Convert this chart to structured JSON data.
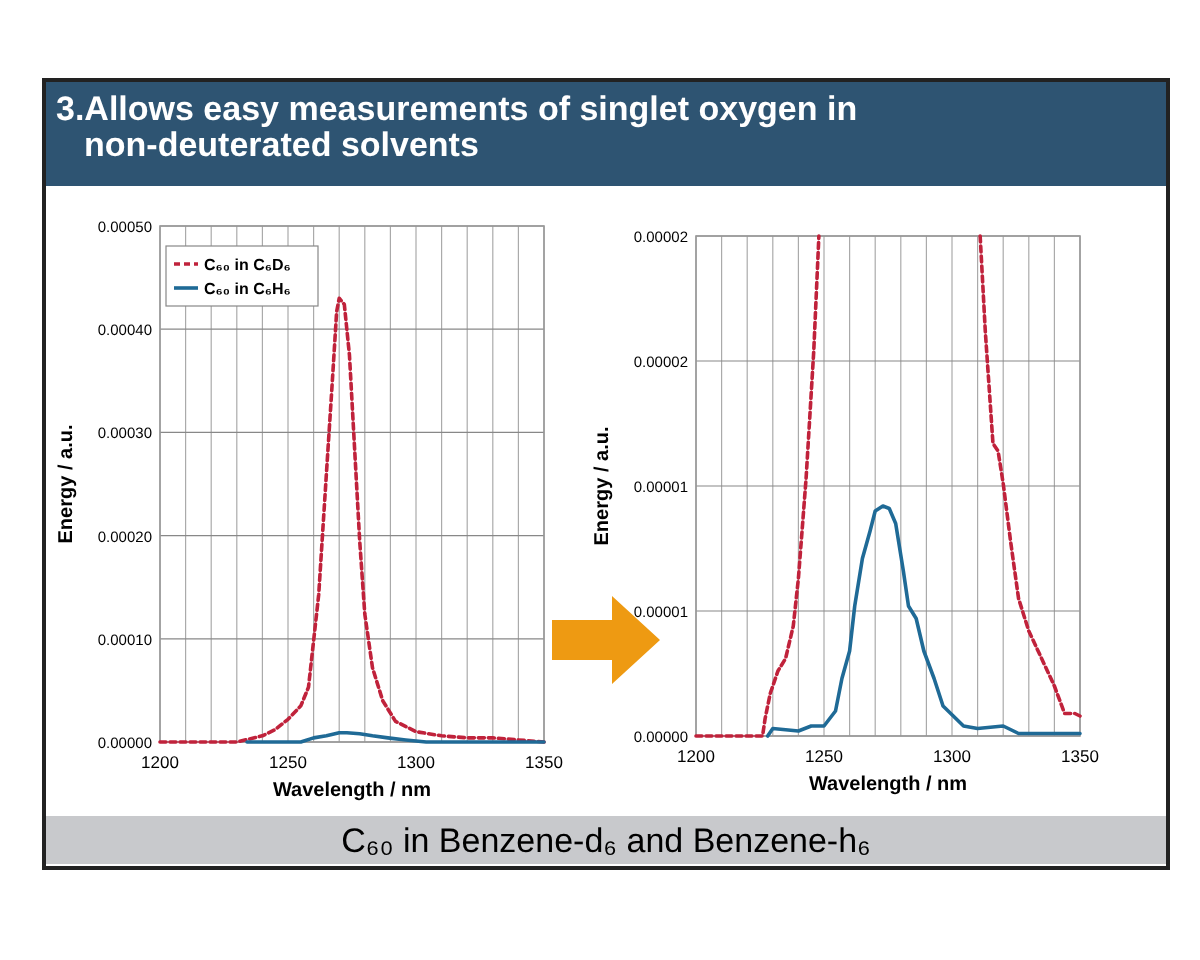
{
  "chart_data": [
    {
      "type": "line",
      "title": "3.Allows easy measurements of singlet oxygen in non-deuterated solvents",
      "annotations": [
        "C₆₀ in Benzene-d₆ and Benzene-h₆"
      ],
      "xlabel": "Wavelength / nm",
      "ylabel": "Energy / a.u.",
      "xlim": [
        1200,
        1350
      ],
      "ylim": [
        0,
        0.0005
      ],
      "xticks": [
        1200,
        {
          "value": 1210,
          "label": null
        },
        {
          "value": 1220,
          "label": null
        },
        {
          "value": 1230,
          "label": null
        },
        {
          "value": 1240,
          "label": null
        },
        1250,
        {
          "value": 1260,
          "label": null
        },
        {
          "value": 1270,
          "label": null
        },
        {
          "value": 1280,
          "label": null
        },
        {
          "value": 1290,
          "label": null
        },
        1300,
        {
          "value": 1310,
          "label": null
        },
        {
          "value": 1320,
          "label": null
        },
        {
          "value": 1330,
          "label": null
        },
        {
          "value": 1340,
          "label": null
        },
        1350
      ],
      "yticks": [
        {
          "value": 0,
          "label": "0.00000"
        },
        {
          "value": 0.0001,
          "label": "0.00010"
        },
        {
          "value": 0.0002,
          "label": "0.00020"
        },
        {
          "value": 0.0003,
          "label": "0.00030"
        },
        {
          "value": 0.0004,
          "label": "0.00040"
        },
        {
          "value": 0.0005,
          "label": "0.00050"
        }
      ],
      "grid": true,
      "legend": "top left",
      "series": [
        {
          "name": "C₆₀ in C₆D₆",
          "color": "#c0223b",
          "line_style": "dashed",
          "x": [
            1200,
            1220,
            1230,
            1240,
            1245,
            1250,
            1255,
            1258,
            1262,
            1265,
            1267,
            1269,
            1270,
            1272,
            1274,
            1276,
            1278,
            1280,
            1283,
            1287,
            1292,
            1300,
            1310,
            1320,
            1330,
            1340,
            1350
          ],
          "values": [
            0,
            0,
            0,
            6e-06,
            1.2e-05,
            2.2e-05,
            3.5e-05,
            5.3e-05,
            0.000143,
            0.00026,
            0.000337,
            0.000417,
            0.00043,
            0.000424,
            0.000375,
            0.000285,
            0.000195,
            0.000124,
            7.2e-05,
            4e-05,
            2e-05,
            1e-05,
            6e-06,
            4e-06,
            4e-06,
            2e-06,
            0
          ]
        },
        {
          "name": "C₆₀ in C₆H₆",
          "color": "#1f6a96",
          "x": [
            1234,
            1245,
            1250,
            1255,
            1260,
            1265,
            1270,
            1273,
            1278,
            1283,
            1289,
            1296,
            1304,
            1320,
            1335,
            1350
          ],
          "values": [
            0,
            0,
            0,
            0,
            4e-06,
            6e-06,
            9e-06,
            9e-06,
            8e-06,
            6e-06,
            4e-06,
            2e-06,
            0,
            0,
            0,
            0
          ]
        }
      ]
    },
    {
      "type": "line",
      "xlabel": "Wavelength / nm",
      "ylabel": "Energy / a.u.",
      "xlim": [
        1200,
        1350
      ],
      "ylim": [
        0,
        2e-05
      ],
      "xticks": [
        1200,
        {
          "value": 1210,
          "label": null
        },
        {
          "value": 1220,
          "label": null
        },
        {
          "value": 1230,
          "label": null
        },
        {
          "value": 1240,
          "label": null
        },
        1250,
        {
          "value": 1260,
          "label": null
        },
        {
          "value": 1270,
          "label": null
        },
        {
          "value": 1280,
          "label": null
        },
        {
          "value": 1290,
          "label": null
        },
        1300,
        {
          "value": 1310,
          "label": null
        },
        {
          "value": 1320,
          "label": null
        },
        {
          "value": 1330,
          "label": null
        },
        {
          "value": 1340,
          "label": null
        },
        1350
      ],
      "yticks": [
        {
          "value": 0,
          "label": "0.00000"
        },
        {
          "value": 5e-06,
          "label": "0.00001"
        },
        {
          "value": 1e-05,
          "label": "0.00001"
        },
        {
          "value": 1.5e-05,
          "label": "0.00002"
        },
        {
          "value": 2e-05,
          "label": "0.00002"
        }
      ],
      "grid": true,
      "series": [
        {
          "color": "#c0223b",
          "line_style": "dashed",
          "x": [
            1200,
            1215,
            1226,
            1227,
            1229,
            1232,
            1235,
            1238,
            1240,
            1243,
            1246,
            1248
          ],
          "values": [
            0,
            0,
            0,
            7e-07,
            1.7e-06,
            2.6e-06,
            3.1e-06,
            4.4e-06,
            6.3e-06,
            1.03e-05,
            1.54e-05,
            2e-05
          ]
        },
        {
          "color": "#c0223b",
          "line_style": "dashed",
          "x": [
            1311,
            1313,
            1316,
            1318,
            1320,
            1323,
            1326,
            1330,
            1335,
            1340,
            1344,
            1348,
            1350
          ],
          "values": [
            2e-05,
            1.62e-05,
            1.17e-05,
            1.14e-05,
            1.01e-05,
            7.7e-06,
            5.5e-06,
            4.2e-06,
            3.1e-06,
            2e-06,
            9e-07,
            9e-07,
            8e-07
          ]
        },
        {
          "color": "#1f6a96",
          "x": [
            1228,
            1230,
            1240,
            1245,
            1250,
            1254.5,
            1257,
            1260,
            1262,
            1265,
            1268,
            1270,
            1273,
            1275.5,
            1278,
            1281,
            1283,
            1286,
            1289,
            1293,
            1296.5,
            1300.5,
            1304.5,
            1310,
            1320,
            1326,
            1333,
            1350
          ],
          "values": [
            0,
            3e-07,
            2e-07,
            4e-07,
            4e-07,
            1e-06,
            2.3e-06,
            3.4e-06,
            5.2e-06,
            7.1e-06,
            8.2e-06,
            9e-06,
            9.2e-06,
            9.1e-06,
            8.5e-06,
            6.6e-06,
            5.2e-06,
            4.7e-06,
            3.4e-06,
            2.3e-06,
            1.2e-06,
            8e-07,
            4e-07,
            3e-07,
            4e-07,
            1e-07,
            1e-07,
            1e-07
          ]
        }
      ]
    }
  ]
}
